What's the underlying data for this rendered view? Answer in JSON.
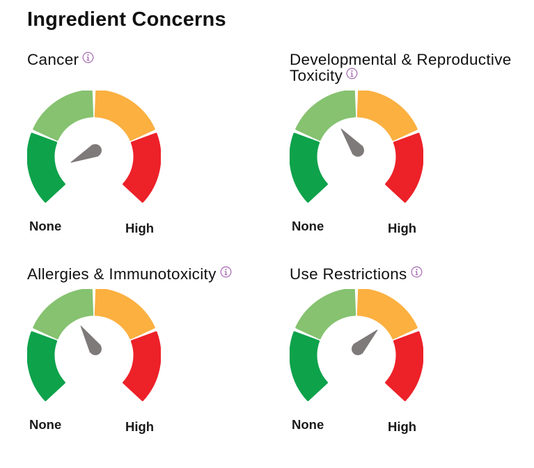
{
  "page": {
    "title": "Ingredient Concerns"
  },
  "colors": {
    "light_green": "#86C270",
    "dark_green": "#0EA24B",
    "orange": "#FBB040",
    "red": "#ED2128",
    "needle": "#7F7A7A",
    "info_icon": "#A96FB5"
  },
  "concerns": [
    {
      "title": "Cancer",
      "info_icon": "info-icon",
      "level": 0.07,
      "scale_min": "None",
      "scale_max": "High"
    },
    {
      "title": "Developmental & Reproductive Toxicity",
      "info_icon": "info-icon",
      "level": 0.36,
      "scale_min": "None",
      "scale_max": "High"
    },
    {
      "title": "Allergies & Immunotoxicity",
      "info_icon": "info-icon",
      "level": 0.38,
      "scale_min": "None",
      "scale_max": "High"
    },
    {
      "title": "Use Restrictions",
      "info_icon": "info-icon",
      "level": 0.67,
      "scale_min": "None",
      "scale_max": "High"
    }
  ]
}
